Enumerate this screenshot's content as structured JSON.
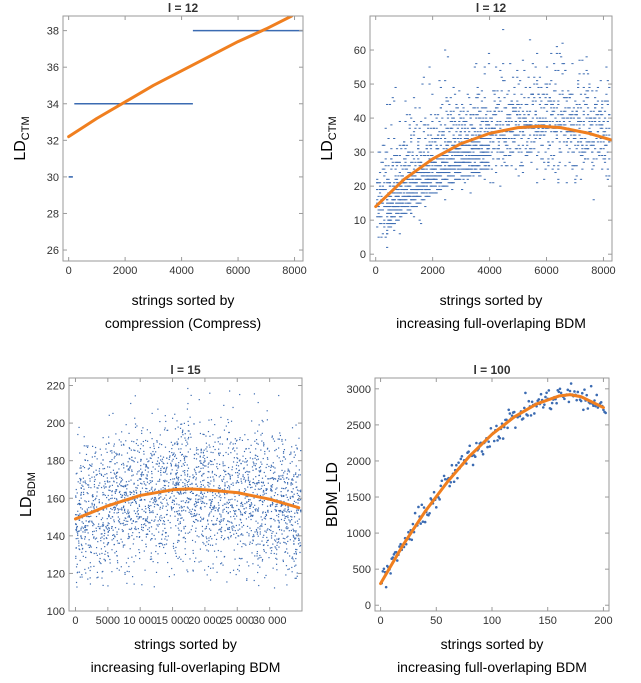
{
  "colors": {
    "data": "#3b6bb2",
    "fit": "#f07f1f"
  },
  "chart_data": [
    {
      "type": "line",
      "title": "l = 12",
      "ylabel_main": "LD",
      "ylabel_sub": "CTM",
      "xlabel_lines": [
        "strings sorted by",
        "compression (Compress)"
      ],
      "xlim": [
        -200,
        8300
      ],
      "ylim": [
        25.4,
        38.8
      ],
      "xticks": [
        0,
        2000,
        4000,
        6000,
        8000
      ],
      "yticks": [
        26,
        28,
        30,
        32,
        34,
        36,
        38
      ],
      "segments": [
        {
          "x": [
            0,
            150
          ],
          "y": 30
        },
        {
          "x": [
            200,
            4400
          ],
          "y": 34
        },
        {
          "x": [
            4400,
            8300
          ],
          "y": 38
        }
      ],
      "fit": {
        "x": [
          0,
          1000,
          2000,
          3000,
          4000,
          5000,
          6000,
          7000,
          7900
        ],
        "y": [
          32.2,
          33.2,
          34.1,
          35.0,
          35.8,
          36.6,
          37.4,
          38.1,
          38.8
        ]
      }
    },
    {
      "type": "scatter",
      "title": "l = 12",
      "ylabel_main": "LD",
      "ylabel_sub": "CTM",
      "xlabel_lines": [
        "strings sorted by",
        "increasing full-overlaping BDM"
      ],
      "xlim": [
        -200,
        8300
      ],
      "ylim": [
        -2,
        70
      ],
      "xticks": [
        0,
        2000,
        4000,
        6000,
        8000
      ],
      "yticks": [
        0,
        10,
        20,
        30,
        40,
        50,
        60
      ],
      "fit": {
        "x": [
          0,
          1000,
          2000,
          3000,
          4000,
          5000,
          5800,
          6500,
          7500,
          8300
        ],
        "y": [
          14.0,
          22.0,
          28.0,
          32.5,
          35.5,
          37.2,
          37.6,
          37.2,
          35.5,
          33.5
        ]
      }
    },
    {
      "type": "scatter",
      "title": "l = 15",
      "ylabel_main": "LD",
      "ylabel_sub": "BDM",
      "xlabel_lines": [
        "strings sorted by",
        "increasing full-overlaping BDM"
      ],
      "xlim": [
        -1000,
        35000
      ],
      "ylim": [
        100,
        224
      ],
      "xticks": [
        0,
        5000,
        10000,
        15000,
        20000,
        25000,
        30000
      ],
      "xticklabels": [
        "0",
        "5000",
        "10 000",
        "15 000",
        "20 000",
        "25 000",
        "30 000"
      ],
      "yticks": [
        100,
        120,
        140,
        160,
        180,
        200,
        220
      ],
      "fit": {
        "x": [
          0,
          5000,
          10000,
          15000,
          17500,
          20000,
          25000,
          30000,
          34500
        ],
        "y": [
          149,
          156,
          161.5,
          164.5,
          165,
          164.5,
          163,
          159.5,
          155
        ]
      }
    },
    {
      "type": "scatter",
      "title": "l = 100",
      "ylabel_main": "BDM_LD",
      "ylabel_sub": "",
      "xlabel_lines": [
        "strings sorted by",
        "increasing full-overlaping BDM"
      ],
      "xlim": [
        -5,
        205
      ],
      "ylim": [
        -80,
        3150
      ],
      "xticks": [
        0,
        50,
        100,
        150,
        200
      ],
      "yticks": [
        0,
        500,
        1000,
        1500,
        2000,
        2500,
        3000
      ],
      "fit": {
        "x": [
          0,
          20,
          40,
          60,
          80,
          100,
          120,
          140,
          160,
          170,
          180,
          200
        ],
        "y": [
          300,
          830,
          1300,
          1710,
          2070,
          2370,
          2610,
          2790,
          2900,
          2920,
          2890,
          2740
        ]
      }
    }
  ]
}
